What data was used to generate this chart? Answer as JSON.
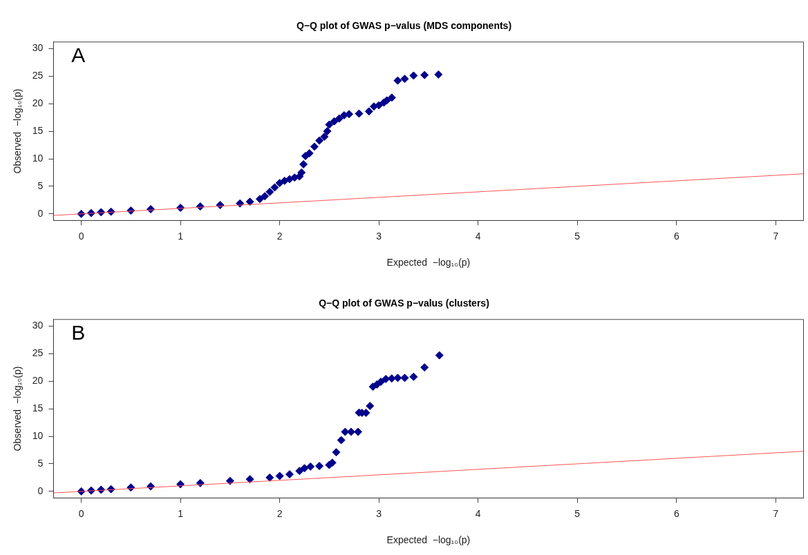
{
  "chart_data": [
    {
      "type": "scatter",
      "title": "Q−Q plot of GWAS p−valus (MDS components)",
      "xlabel": "Expected  −log₁₀(p)",
      "ylabel": "Observed  −log₁₀(p)",
      "annotations": [
        "A"
      ],
      "marker": "diamond",
      "grid": false,
      "legend": false,
      "xlim": [
        -0.28,
        7.28
      ],
      "ylim": [
        -1.2,
        31.2
      ],
      "xticks": [
        0,
        1,
        2,
        3,
        4,
        5,
        6,
        7
      ],
      "yticks": [
        0,
        5,
        10,
        15,
        20,
        25,
        30
      ],
      "series": [
        {
          "color": "#00008b",
          "x": [
            0,
            0.1,
            0.2,
            0.3,
            0.5,
            0.7,
            1.0,
            1.2,
            1.4,
            1.6,
            1.7,
            1.8,
            1.85,
            1.9,
            1.95,
            2.0,
            2.05,
            2.1,
            2.15,
            2.2,
            2.22,
            2.24,
            2.26,
            2.3,
            2.35,
            2.4,
            2.45,
            2.48,
            2.5,
            2.55,
            2.6,
            2.65,
            2.7,
            2.8,
            2.9,
            2.95,
            3.0,
            3.05,
            3.08,
            3.13,
            3.19,
            3.26,
            3.35,
            3.46,
            3.6
          ],
          "values": [
            0,
            0.15,
            0.3,
            0.4,
            0.6,
            0.85,
            1.1,
            1.35,
            1.6,
            1.9,
            2.2,
            2.7,
            3.2,
            4.0,
            4.8,
            5.6,
            6.0,
            6.3,
            6.6,
            6.8,
            7.5,
            9,
            10.5,
            11,
            12.2,
            13.3,
            14,
            15,
            16.2,
            16.8,
            17.3,
            17.9,
            18.1,
            18.2,
            18.6,
            19.5,
            19.7,
            20.2,
            20.6,
            21.1,
            24.2,
            24.5,
            25.1,
            25.2,
            25.3
          ]
        },
        {
          "type": "line",
          "marker": "none",
          "color": "#ff5555",
          "x": [
            -0.28,
            7.28
          ],
          "values": [
            -0.28,
            7.28
          ]
        }
      ]
    },
    {
      "type": "scatter",
      "title": "Q−Q plot of GWAS p−valus (clusters)",
      "xlabel": "Expected  −log₁₀(p)",
      "ylabel": "Observed  −log₁₀(p)",
      "annotations": [
        "B"
      ],
      "marker": "diamond",
      "grid": false,
      "legend": false,
      "xlim": [
        -0.28,
        7.28
      ],
      "ylim": [
        -1.2,
        31.2
      ],
      "xticks": [
        0,
        1,
        2,
        3,
        4,
        5,
        6,
        7
      ],
      "yticks": [
        0,
        5,
        10,
        15,
        20,
        25,
        30
      ],
      "series": [
        {
          "color": "#00008b",
          "x": [
            0,
            0.1,
            0.2,
            0.3,
            0.5,
            0.7,
            1.0,
            1.2,
            1.5,
            1.7,
            1.9,
            2.0,
            2.1,
            2.2,
            2.25,
            2.31,
            2.4,
            2.5,
            2.53,
            2.57,
            2.62,
            2.66,
            2.72,
            2.79,
            2.8,
            2.83,
            2.87,
            2.91,
            2.94,
            2.98,
            3.02,
            3.07,
            3.13,
            3.19,
            3.26,
            3.35,
            3.46,
            3.61
          ],
          "values": [
            0,
            0.15,
            0.3,
            0.4,
            0.7,
            0.9,
            1.3,
            1.5,
            1.9,
            2.2,
            2.5,
            2.8,
            3.1,
            3.7,
            4.2,
            4.5,
            4.6,
            4.8,
            5.2,
            7.1,
            9.3,
            10.8,
            10.8,
            10.8,
            14.3,
            14.25,
            14.25,
            15.5,
            19.0,
            19.4,
            19.9,
            20.4,
            20.5,
            20.6,
            20.6,
            20.8,
            22.5,
            24.7
          ]
        },
        {
          "type": "line",
          "marker": "none",
          "color": "#ff5555",
          "x": [
            -0.28,
            7.28
          ],
          "values": [
            -0.28,
            7.28
          ]
        }
      ]
    }
  ]
}
